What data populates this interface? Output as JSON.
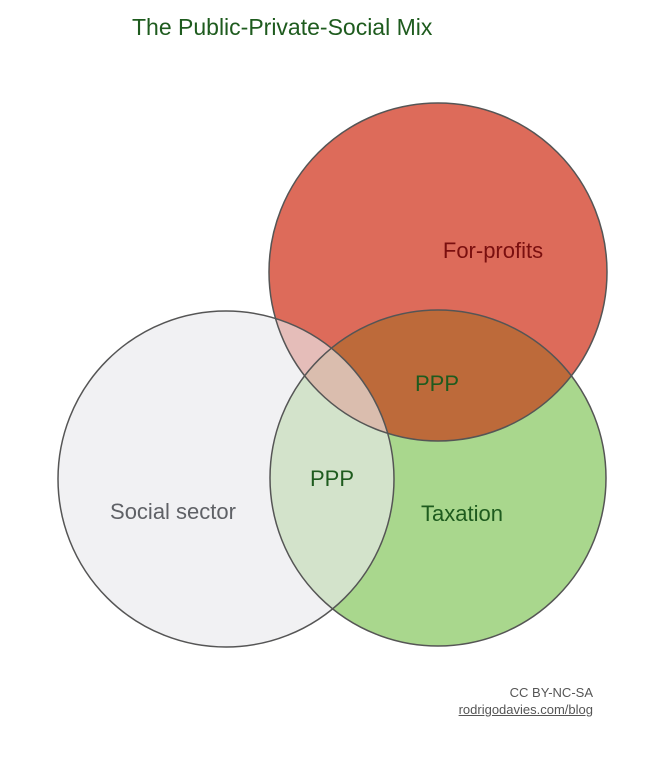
{
  "title": "The Public-Private-Social Mix",
  "diagram": {
    "sets": [
      {
        "id": "for-profits",
        "label": "For-profits",
        "fill": "#dd6b5a",
        "label_color": "#7a0f0f"
      },
      {
        "id": "taxation",
        "label": "Taxation",
        "fill": "#a9d78d",
        "label_color": "#1e5b1e"
      },
      {
        "id": "social-sector",
        "label": "Social sector",
        "fill": "#e9eaec",
        "label_color": "#5f6166"
      }
    ],
    "overlaps": [
      {
        "id": "for-profits-taxation",
        "label": "PPP",
        "fill": "#bd6a3a",
        "label_color": "#1e5b1e"
      },
      {
        "id": "social-sector-taxation",
        "label": "PPP",
        "fill": "#cde0c5",
        "label_color": "#1e5b1e"
      }
    ]
  },
  "credits": {
    "license": "CC BY-NC-SA",
    "link": "rodrigodavies.com/blog"
  },
  "colors": {
    "title": "#1e5b1e",
    "outline": "#555555"
  }
}
